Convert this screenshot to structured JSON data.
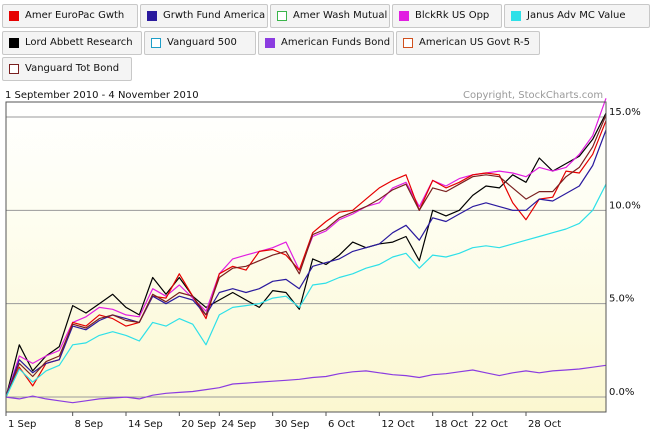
{
  "header": {
    "date_range": "1 September 2010 - 4 November 2010",
    "copyright": "Copyright, StockCharts.com"
  },
  "legend": [
    {
      "label": "Amer EuroPac Gwth",
      "color": "#e60000",
      "style": "filled"
    },
    {
      "label": "Grwth Fund America",
      "color": "#2a1a9e",
      "style": "filled"
    },
    {
      "label": "Amer Wash Mutual",
      "color": "#3ab54a",
      "style": "outline"
    },
    {
      "label": "BlckRk US Opp",
      "color": "#e11ee1",
      "style": "filled"
    },
    {
      "label": "Janus Adv MC Value",
      "color": "#2ee0e8",
      "style": "filled"
    },
    {
      "label": "Lord Abbett Research",
      "color": "#000000",
      "style": "filled"
    },
    {
      "label": "Vanguard 500",
      "color": "#1e9ec8",
      "style": "outline"
    },
    {
      "label": "American Funds Bond",
      "color": "#8b3ce0",
      "style": "filled"
    },
    {
      "label": "American US Govt R-5",
      "color": "#d0501e",
      "style": "outline"
    },
    {
      "label": "Vanguard Tot Bond",
      "color": "#7a2020",
      "style": "outline"
    }
  ],
  "chart_data": {
    "type": "line",
    "x_tick_labels": [
      "1 Sep",
      "8 Sep",
      "14 Sep",
      "20 Sep",
      "24 Sep",
      "30 Sep",
      "6 Oct",
      "12 Oct",
      "18 Oct",
      "22 Oct",
      "28 Oct"
    ],
    "x_tick_index": [
      0,
      5,
      9,
      13,
      16,
      20,
      24,
      28,
      32,
      35,
      39
    ],
    "y_ticks": [
      {
        "value": 0,
        "label": "0.0%"
      },
      {
        "value": 5,
        "label": "5.0%"
      },
      {
        "value": 10,
        "label": "10.0%"
      },
      {
        "value": 15,
        "label": "15.0%"
      }
    ],
    "ylim": [
      -0.8,
      15.8
    ],
    "n_points": 46,
    "grid": true,
    "series": [
      {
        "name": "Lord Abbett Research",
        "color": "#000000",
        "values": [
          0,
          2.8,
          1.4,
          2.2,
          2.7,
          4.9,
          4.5,
          5.0,
          5.5,
          4.8,
          4.4,
          6.4,
          5.5,
          6.4,
          5.4,
          4.8,
          5.2,
          5.6,
          5.2,
          4.8,
          5.7,
          5.6,
          4.7,
          7.4,
          7.1,
          7.6,
          8.3,
          8.0,
          8.2,
          8.3,
          8.6,
          7.3,
          10.0,
          9.7,
          10.0,
          10.8,
          11.3,
          11.2,
          11.9,
          11.5,
          12.8,
          12.1,
          12.5,
          12.9,
          13.8,
          15.2
        ]
      },
      {
        "name": "BlckRk US Opp",
        "color": "#e11ee1",
        "values": [
          0,
          2.2,
          1.8,
          2.2,
          2.5,
          4.0,
          4.3,
          4.8,
          4.7,
          4.4,
          4.3,
          5.8,
          5.4,
          6.0,
          5.3,
          4.6,
          6.6,
          7.4,
          7.6,
          7.8,
          8.0,
          8.3,
          6.8,
          8.6,
          8.9,
          9.5,
          9.8,
          10.2,
          10.4,
          11.2,
          11.5,
          10.2,
          11.6,
          11.3,
          11.7,
          11.9,
          12.0,
          12.1,
          12.0,
          11.8,
          12.3,
          12.1,
          12.3,
          13.0,
          14.0,
          16.0
        ]
      },
      {
        "name": "Amer EuroPac Gwth",
        "color": "#e60000",
        "values": [
          0,
          1.6,
          0.6,
          1.8,
          2.0,
          4.0,
          3.8,
          4.4,
          4.2,
          3.8,
          4.0,
          5.4,
          5.3,
          6.6,
          5.4,
          4.2,
          6.6,
          7.0,
          6.8,
          7.8,
          7.9,
          7.6,
          6.8,
          8.8,
          9.4,
          9.9,
          10.0,
          10.6,
          11.2,
          11.6,
          11.9,
          10.0,
          11.6,
          11.2,
          11.5,
          11.9,
          12.0,
          11.9,
          10.4,
          9.5,
          10.6,
          10.7,
          12.1,
          12.0,
          13.0,
          14.8
        ]
      },
      {
        "name": "Grwth Fund America",
        "color": "#2a1a9e",
        "values": [
          0,
          2.0,
          1.3,
          1.8,
          2.0,
          3.8,
          3.6,
          4.1,
          4.4,
          4.2,
          4.0,
          5.4,
          5.0,
          5.4,
          5.2,
          4.4,
          5.6,
          5.8,
          5.6,
          5.8,
          6.2,
          6.3,
          5.8,
          7.0,
          7.2,
          7.4,
          7.8,
          8.0,
          8.2,
          8.8,
          9.2,
          8.4,
          9.6,
          9.4,
          9.8,
          10.2,
          10.4,
          10.2,
          10.0,
          10.0,
          10.6,
          10.5,
          10.9,
          11.3,
          12.4,
          14.3
        ]
      },
      {
        "name": "Vanguard Tot Bond",
        "color": "#7a2020",
        "values": [
          0,
          1.8,
          1.1,
          1.9,
          2.2,
          3.9,
          3.7,
          4.2,
          4.4,
          4.1,
          4.0,
          5.5,
          5.1,
          5.6,
          5.4,
          4.4,
          6.4,
          6.9,
          7.0,
          7.3,
          7.6,
          7.8,
          6.6,
          8.7,
          9.0,
          9.6,
          9.9,
          10.2,
          10.6,
          11.1,
          11.4,
          10.0,
          11.2,
          11.0,
          11.4,
          11.8,
          11.9,
          11.8,
          11.2,
          10.6,
          11.0,
          11.0,
          11.8,
          12.3,
          13.4,
          15.1
        ]
      },
      {
        "name": "Janus Adv MC Value",
        "color": "#2ee0e8",
        "values": [
          0,
          1.5,
          0.8,
          1.4,
          1.7,
          2.8,
          2.9,
          3.3,
          3.5,
          3.3,
          3.0,
          4.0,
          3.8,
          4.2,
          3.9,
          2.8,
          4.4,
          4.8,
          4.9,
          5.0,
          5.3,
          5.4,
          4.8,
          6.0,
          6.1,
          6.4,
          6.6,
          6.9,
          7.1,
          7.5,
          7.7,
          6.9,
          7.6,
          7.5,
          7.7,
          8.0,
          8.1,
          8.0,
          8.2,
          8.4,
          8.6,
          8.8,
          9.0,
          9.3,
          10.0,
          11.4
        ]
      },
      {
        "name": "American Funds Bond",
        "color": "#8b3ce0",
        "values": [
          0,
          -0.1,
          0.05,
          -0.1,
          -0.2,
          -0.3,
          -0.2,
          -0.1,
          -0.05,
          0.0,
          -0.1,
          0.1,
          0.2,
          0.25,
          0.3,
          0.4,
          0.5,
          0.7,
          0.75,
          0.8,
          0.85,
          0.9,
          0.95,
          1.05,
          1.1,
          1.25,
          1.35,
          1.4,
          1.3,
          1.2,
          1.15,
          1.05,
          1.2,
          1.25,
          1.35,
          1.45,
          1.3,
          1.15,
          1.3,
          1.4,
          1.3,
          1.4,
          1.45,
          1.5,
          1.6,
          1.7
        ]
      }
    ]
  }
}
